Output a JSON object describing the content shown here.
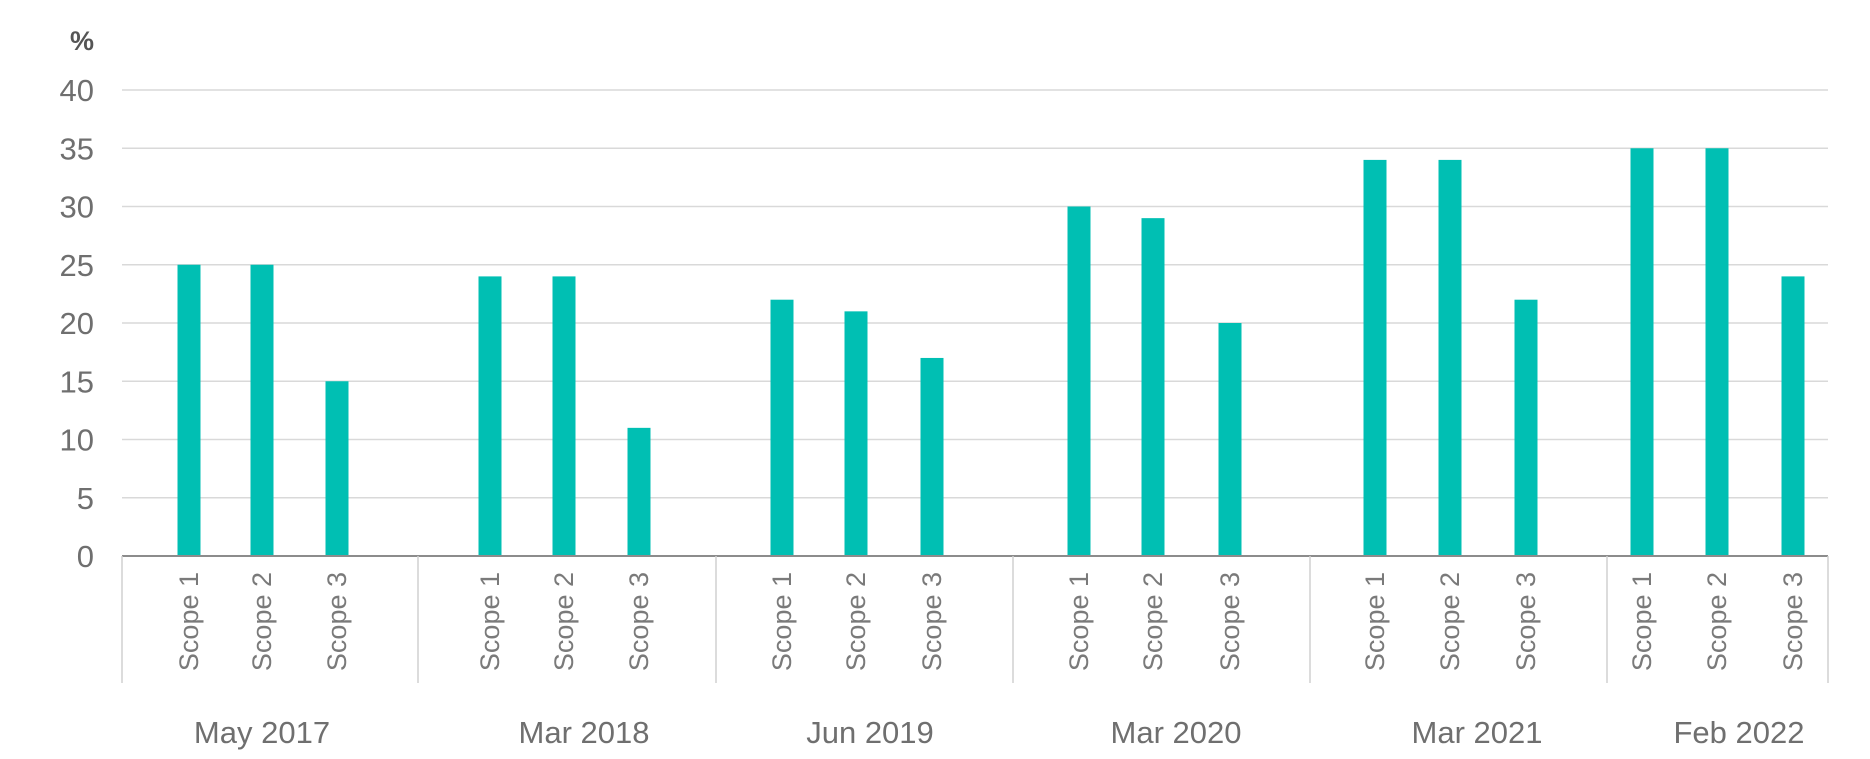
{
  "chart_data": {
    "type": "bar",
    "unit_label": "%",
    "ylim": [
      0,
      40
    ],
    "yticks": [
      0,
      5,
      10,
      15,
      20,
      25,
      30,
      35,
      40
    ],
    "grid": true,
    "bar_color": "#00bfb3",
    "groups": [
      {
        "label": "May 2017",
        "categories": [
          "Scope 1",
          "Scope 2",
          "Scope 3"
        ],
        "values": [
          25,
          25,
          15
        ]
      },
      {
        "label": "Mar 2018",
        "categories": [
          "Scope 1",
          "Scope 2",
          "Scope 3"
        ],
        "values": [
          24,
          24,
          11
        ]
      },
      {
        "label": "Jun 2019",
        "categories": [
          "Scope 1",
          "Scope 2",
          "Scope 3"
        ],
        "values": [
          22,
          21,
          17
        ]
      },
      {
        "label": "Mar 2020",
        "categories": [
          "Scope 1",
          "Scope 2",
          "Scope 3"
        ],
        "values": [
          30,
          29,
          20
        ]
      },
      {
        "label": "Mar 2021",
        "categories": [
          "Scope 1",
          "Scope 2",
          "Scope 3"
        ],
        "values": [
          34,
          34,
          22
        ]
      },
      {
        "label": "Feb 2022",
        "categories": [
          "Scope 1",
          "Scope 2",
          "Scope 3"
        ],
        "values": [
          35,
          35,
          24
        ]
      }
    ]
  }
}
